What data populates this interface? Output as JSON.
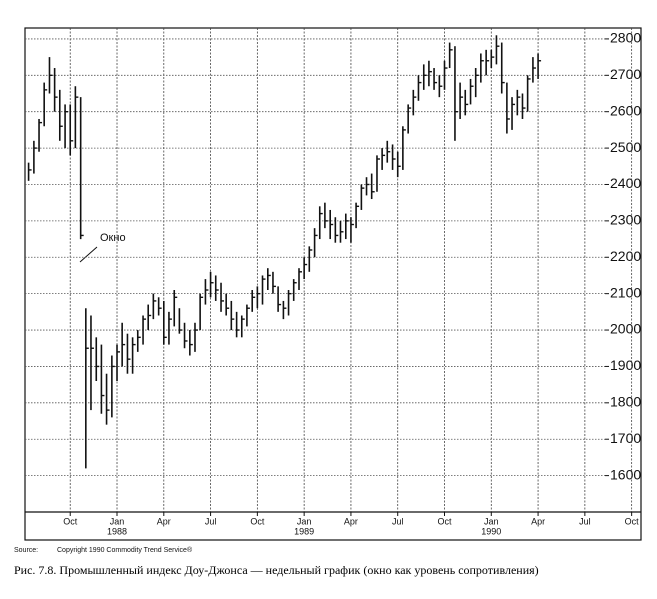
{
  "chart_data": {
    "type": "ohlc",
    "annotation": "Окно",
    "source_label": "Source:",
    "source": "Copyright 1990 Commodity Trend Service®",
    "caption": "Рис. 7.8. Промышленный индекс Доу-Джонса — недельный график (окно как уровень сопротивления)",
    "color": "#111111",
    "grid": true,
    "xlim": [
      6.1,
      45.6
    ],
    "xticks": [
      {
        "value": 9,
        "label": "Oct"
      },
      {
        "value": 12,
        "label": "Jan"
      },
      {
        "value": 15,
        "label": "Apr"
      },
      {
        "value": 18,
        "label": "Jul"
      },
      {
        "value": 21,
        "label": "Oct"
      },
      {
        "value": 24,
        "label": "Jan"
      },
      {
        "value": 27,
        "label": "Apr"
      },
      {
        "value": 30,
        "label": "Jul"
      },
      {
        "value": 33,
        "label": "Oct"
      },
      {
        "value": 36,
        "label": "Jan"
      },
      {
        "value": 39,
        "label": "Apr"
      },
      {
        "value": 42,
        "label": "Jul"
      },
      {
        "value": 45,
        "label": "Oct"
      }
    ],
    "year_labels": [
      {
        "value": 12,
        "label": "1988"
      },
      {
        "value": 24,
        "label": "1989"
      },
      {
        "value": 36,
        "label": "1990"
      }
    ],
    "ylim": [
      1500,
      2830
    ],
    "yticks": [
      1600,
      1700,
      1800,
      1900,
      2000,
      2100,
      2200,
      2300,
      2400,
      2500,
      2600,
      2700,
      2800
    ],
    "x": [
      6.33,
      6.67,
      7,
      7.33,
      7.67,
      8,
      8.33,
      8.67,
      9,
      9.33,
      9.67,
      10,
      10.33,
      10.67,
      11,
      11.33,
      11.67,
      12,
      12.33,
      12.67,
      13,
      13.33,
      13.67,
      14,
      14.33,
      14.67,
      15,
      15.33,
      15.67,
      16,
      16.33,
      16.67,
      17,
      17.33,
      17.67,
      18,
      18.33,
      18.67,
      19,
      19.33,
      19.67,
      20,
      20.33,
      20.67,
      21,
      21.33,
      21.67,
      22,
      22.33,
      22.67,
      23,
      23.33,
      23.67,
      24,
      24.33,
      24.67,
      25,
      25.33,
      25.67,
      26,
      26.33,
      26.67,
      27,
      27.33,
      27.67,
      28,
      28.33,
      28.67,
      29,
      29.33,
      29.67,
      30,
      30.33,
      30.67,
      31,
      31.33,
      31.67,
      32,
      32.33,
      32.67,
      33,
      33.33,
      33.67,
      34,
      34.33,
      34.67,
      35,
      35.33,
      35.67,
      36,
      36.33,
      36.67,
      37,
      37.33,
      37.67,
      38,
      38.33,
      38.67,
      39
    ],
    "high": [
      2460,
      2520,
      2580,
      2680,
      2750,
      2720,
      2660,
      2620,
      2620,
      2670,
      2640,
      2060,
      2040,
      1980,
      1960,
      1880,
      1930,
      1960,
      2020,
      1990,
      1980,
      2000,
      2040,
      2070,
      2100,
      2090,
      2080,
      2050,
      2110,
      2060,
      2020,
      2000,
      2020,
      2100,
      2140,
      2160,
      2150,
      2130,
      2100,
      2080,
      2050,
      2040,
      2070,
      2110,
      2120,
      2150,
      2170,
      2160,
      2120,
      2080,
      2110,
      2140,
      2170,
      2200,
      2230,
      2280,
      2340,
      2350,
      2330,
      2310,
      2300,
      2320,
      2310,
      2350,
      2400,
      2420,
      2430,
      2480,
      2500,
      2520,
      2510,
      2490,
      2560,
      2620,
      2660,
      2700,
      2730,
      2740,
      2720,
      2700,
      2740,
      2790,
      2780,
      2680,
      2660,
      2690,
      2720,
      2760,
      2770,
      2770,
      2810,
      2790,
      2680,
      2640,
      2660,
      2650,
      2700,
      2750,
      2760
    ],
    "low": [
      2410,
      2430,
      2490,
      2560,
      2650,
      2600,
      2520,
      2500,
      2480,
      2500,
      2250,
      1620,
      1780,
      1860,
      1770,
      1740,
      1760,
      1860,
      1900,
      1880,
      1880,
      1940,
      1960,
      2000,
      2030,
      2040,
      1960,
      1960,
      2010,
      1990,
      1950,
      1930,
      1940,
      2000,
      2070,
      2090,
      2080,
      2050,
      2040,
      2000,
      1980,
      1980,
      2010,
      2050,
      2060,
      2070,
      2110,
      2100,
      2050,
      2030,
      2040,
      2080,
      2110,
      2140,
      2160,
      2200,
      2250,
      2280,
      2250,
      2240,
      2240,
      2250,
      2240,
      2280,
      2330,
      2370,
      2360,
      2380,
      2440,
      2460,
      2440,
      2420,
      2440,
      2540,
      2590,
      2630,
      2660,
      2670,
      2660,
      2640,
      2660,
      2720,
      2520,
      2580,
      2590,
      2620,
      2640,
      2680,
      2700,
      2720,
      2730,
      2650,
      2540,
      2550,
      2590,
      2580,
      2600,
      2680,
      2690
    ],
    "close": [
      2440,
      2500,
      2570,
      2660,
      2700,
      2640,
      2560,
      2600,
      2520,
      2640,
      2260,
      1950,
      1950,
      1900,
      1820,
      1780,
      1900,
      1940,
      1960,
      1920,
      1960,
      1980,
      2030,
      2040,
      2080,
      2060,
      1980,
      2030,
      2090,
      2000,
      1970,
      1960,
      2000,
      2090,
      2110,
      2130,
      2110,
      2080,
      2060,
      2030,
      2000,
      2030,
      2060,
      2090,
      2100,
      2140,
      2150,
      2120,
      2070,
      2060,
      2100,
      2130,
      2160,
      2180,
      2220,
      2260,
      2320,
      2300,
      2290,
      2260,
      2270,
      2300,
      2290,
      2340,
      2390,
      2400,
      2380,
      2470,
      2480,
      2490,
      2470,
      2450,
      2550,
      2610,
      2640,
      2680,
      2700,
      2710,
      2680,
      2670,
      2720,
      2770,
      2600,
      2640,
      2620,
      2670,
      2700,
      2740,
      2740,
      2750,
      2780,
      2680,
      2580,
      2620,
      2640,
      2610,
      2690,
      2720,
      2740
    ]
  }
}
